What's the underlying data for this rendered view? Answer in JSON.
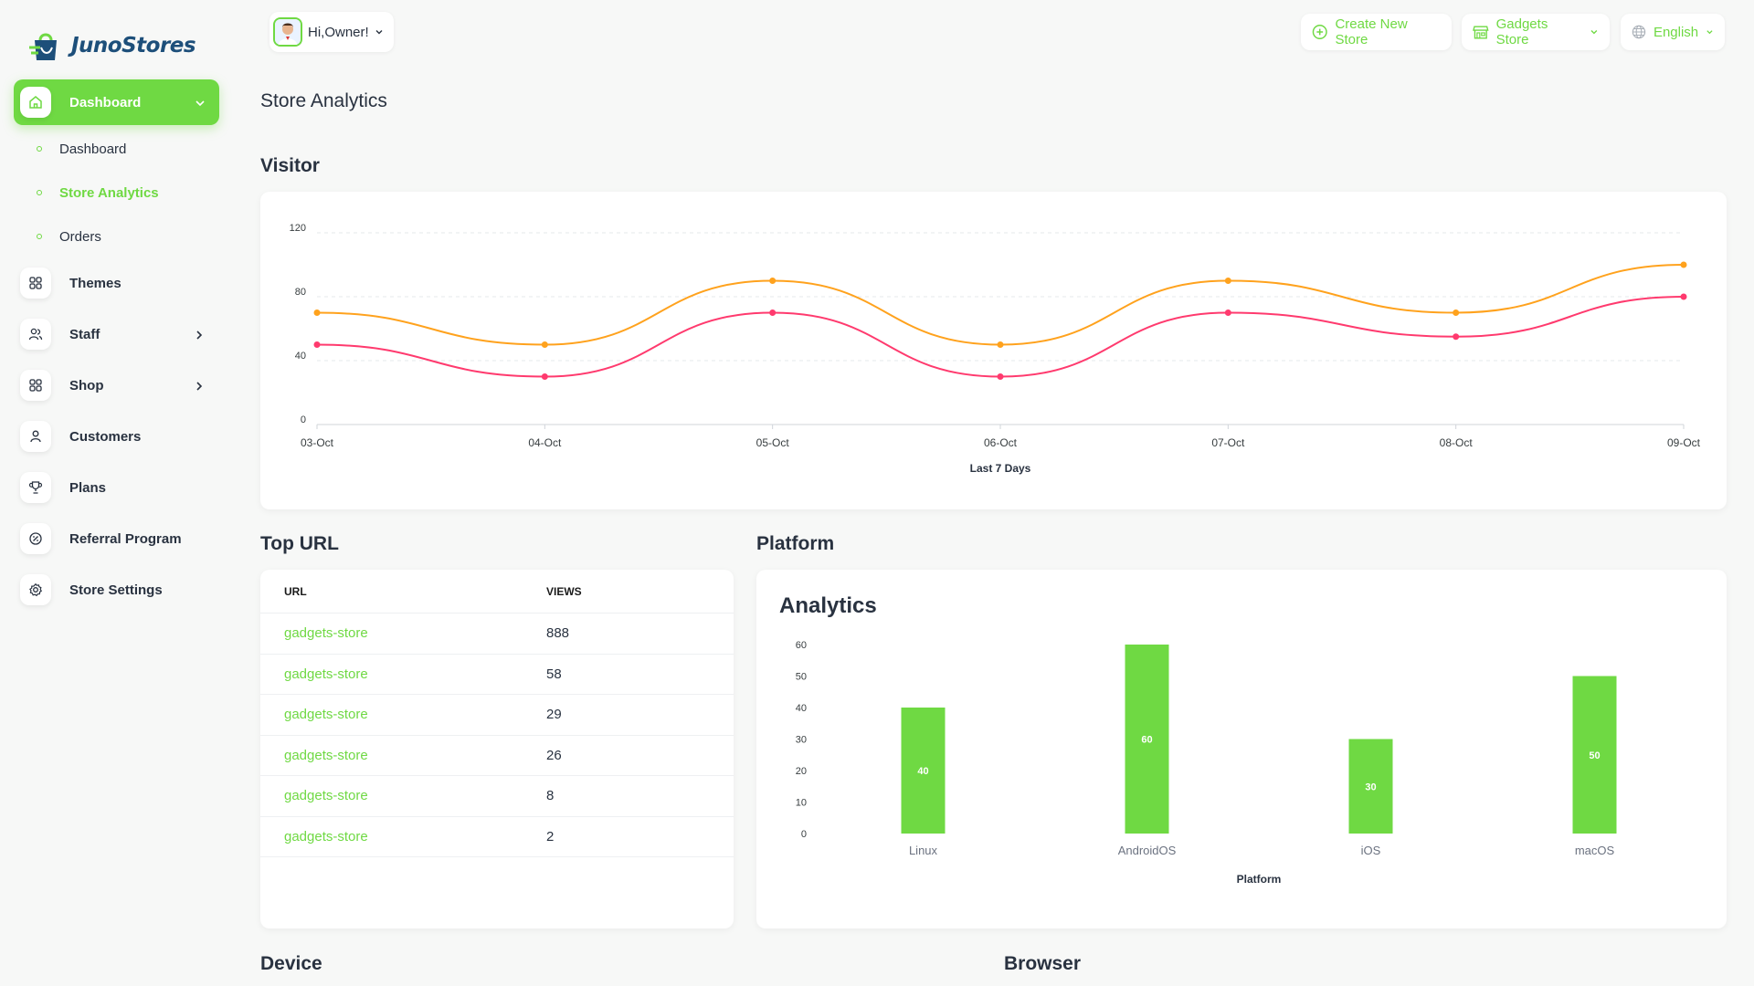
{
  "brand": {
    "name": "JunoStores",
    "accent": "#6fd943",
    "logo_color": "#1d4f7a"
  },
  "header": {
    "greeting": "Hi,Owner!",
    "create_store": "Create New Store",
    "store_select": "Gadgets Store",
    "language": "English"
  },
  "sidebar": {
    "dashboard": "Dashboard",
    "sub_items": [
      "Dashboard",
      "Store Analytics",
      "Orders"
    ],
    "items": [
      "Themes",
      "Staff",
      "Shop",
      "Customers",
      "Plans",
      "Referral Program",
      "Store Settings"
    ]
  },
  "page": {
    "title": "Store Analytics",
    "visitor_title": "Visitor",
    "top_url_title": "Top URL",
    "platform_title": "Platform",
    "device_title": "Device",
    "browser_title": "Browser"
  },
  "top_url": {
    "headers": [
      "URL",
      "VIEWS"
    ],
    "rows": [
      {
        "url": "gadgets-store",
        "views": "888"
      },
      {
        "url": "gadgets-store",
        "views": "58"
      },
      {
        "url": "gadgets-store",
        "views": "29"
      },
      {
        "url": "gadgets-store",
        "views": "26"
      },
      {
        "url": "gadgets-store",
        "views": "8"
      },
      {
        "url": "gadgets-store",
        "views": "2"
      }
    ]
  },
  "chart_data": [
    {
      "type": "line",
      "title": "",
      "xlabel": "Last 7 Days",
      "ylabel": "",
      "categories": [
        "03-Oct",
        "04-Oct",
        "05-Oct",
        "06-Oct",
        "07-Oct",
        "08-Oct",
        "09-Oct"
      ],
      "ylim": [
        0,
        120
      ],
      "yticks": [
        0,
        40,
        80,
        120
      ],
      "grid": true,
      "series": [
        {
          "color": "#ffa21d",
          "values": [
            70,
            50,
            90,
            50,
            90,
            70,
            100
          ]
        },
        {
          "color": "#ff3a6e",
          "values": [
            50,
            30,
            70,
            30,
            70,
            55,
            80
          ]
        }
      ]
    },
    {
      "type": "bar",
      "title": "Analytics",
      "xlabel": "Platform",
      "ylabel": "",
      "categories": [
        "Linux",
        "AndroidOS",
        "iOS",
        "macOS"
      ],
      "values": [
        40,
        60,
        30,
        50
      ],
      "ylim": [
        0,
        60
      ],
      "yticks": [
        0,
        10,
        20,
        30,
        40,
        50,
        60
      ],
      "color": "#6fd943"
    }
  ]
}
